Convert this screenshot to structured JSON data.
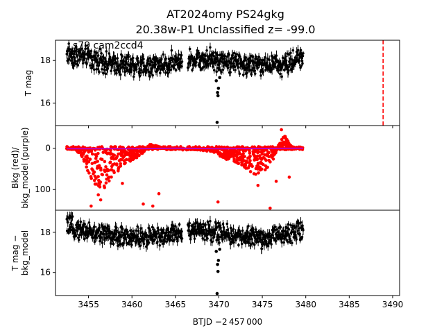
{
  "figure": {
    "title_line1": "AT2024omy  PS24gkg",
    "title_line2": "20.38w-P1 Unclassified z= -99.0",
    "annotation": "s79 cam2ccd4",
    "xlabel": "BTJD −2 457 000"
  },
  "chart_data": [
    {
      "type": "scatter",
      "panel": "top",
      "ylabel": "T mag",
      "y_inverted": true,
      "xlim": [
        3451.2,
        3490.8
      ],
      "ylim": [
        18.95,
        14.95
      ],
      "x_ticks": [
        3455,
        3460,
        3465,
        3470,
        3475,
        3480,
        3485,
        3490
      ],
      "y_ticks": [
        16,
        18
      ],
      "series": [
        {
          "color": "#000000",
          "marker": "point+errorbar",
          "baseline_curve": [
            [
              3452.5,
              18.35
            ],
            [
              3455,
              18.1
            ],
            [
              3458,
              17.85
            ],
            [
              3461,
              17.75
            ],
            [
              3464,
              17.85
            ],
            [
              3467,
              18.1
            ],
            [
              3469,
              18.1
            ],
            [
              3471,
              17.95
            ],
            [
              3474,
              17.8
            ],
            [
              3477,
              17.75
            ],
            [
              3479.7,
              18.15
            ]
          ],
          "scatter_width": 0.6,
          "outliers": [
            [
              3469.8,
              15.1
            ],
            [
              3469.9,
              16.35
            ],
            [
              3469.85,
              16.5
            ],
            [
              3469.95,
              16.7
            ],
            [
              3469.7,
              17.05
            ],
            [
              3470.1,
              17.2
            ]
          ]
        }
      ],
      "vline": {
        "x": 3488.9,
        "color": "#ff0000",
        "style": "dashed"
      }
    },
    {
      "type": "scatter",
      "panel": "middle",
      "ylabel": "Bkg (red)/\nbkg_model (purple)",
      "xlim": [
        3451.2,
        3490.8
      ],
      "ylim": [
        -55,
        150
      ],
      "y_ticks": [
        0,
        100
      ],
      "series": [
        {
          "color": "#ff0000",
          "marker": "point",
          "envelope": [
            [
              3452.5,
              2
            ],
            [
              3453.5,
              3
            ],
            [
              3454.2,
              20
            ],
            [
              3455.0,
              60
            ],
            [
              3455.6,
              95
            ],
            [
              3456.2,
              120
            ],
            [
              3457.0,
              90
            ],
            [
              3458.0,
              70
            ],
            [
              3459.0,
              40
            ],
            [
              3460.0,
              30
            ],
            [
              3461.0,
              20
            ],
            [
              3462.0,
              -10
            ],
            [
              3463.0,
              -5
            ],
            [
              3464.0,
              2
            ],
            [
              3466.0,
              1
            ],
            [
              3468.0,
              5
            ],
            [
              3469.5,
              10
            ],
            [
              3470.5,
              25
            ],
            [
              3471.5,
              30
            ],
            [
              3472.5,
              40
            ],
            [
              3473.5,
              55
            ],
            [
              3474.5,
              70
            ],
            [
              3475.5,
              50
            ],
            [
              3476.5,
              20
            ],
            [
              3477.0,
              -20
            ],
            [
              3477.6,
              -30
            ],
            [
              3478.5,
              0
            ],
            [
              3479.7,
              0
            ]
          ],
          "spikes": [
            [
              3455.3,
              140
            ],
            [
              3456.4,
              125
            ],
            [
              3458.9,
              85
            ],
            [
              3461.3,
              135
            ],
            [
              3462.4,
              140
            ],
            [
              3463.1,
              110
            ],
            [
              3469.9,
              130
            ],
            [
              3474.5,
              90
            ],
            [
              3475.9,
              145
            ],
            [
              3476.6,
              80
            ],
            [
              3478.1,
              70
            ],
            [
              3477.2,
              -45
            ]
          ]
        },
        {
          "color": "#bf00bf",
          "marker": "line",
          "points": [
            [
              3452.5,
              1
            ],
            [
              3460,
              1
            ],
            [
              3465,
              0
            ],
            [
              3470,
              1
            ],
            [
              3479.7,
              0
            ]
          ]
        }
      ]
    },
    {
      "type": "scatter",
      "panel": "bottom",
      "ylabel": "T mag −\nbkg_model",
      "y_inverted": true,
      "xlim": [
        3451.2,
        3490.8
      ],
      "ylim": [
        19.1,
        14.85
      ],
      "x_ticks": [
        3455,
        3460,
        3465,
        3470,
        3475,
        3480,
        3485,
        3490
      ],
      "y_ticks": [
        16,
        18
      ],
      "series": [
        {
          "color": "#000000",
          "marker": "point+errorbar",
          "baseline_curve": [
            [
              3452.5,
              18.3
            ],
            [
              3455,
              18.05
            ],
            [
              3458,
              17.8
            ],
            [
              3461,
              17.72
            ],
            [
              3464,
              17.85
            ],
            [
              3467,
              18.1
            ],
            [
              3469,
              18.05
            ],
            [
              3471,
              17.9
            ],
            [
              3474,
              17.75
            ],
            [
              3477,
              17.75
            ],
            [
              3479.7,
              18.2
            ]
          ],
          "scatter_width": 0.6,
          "outliers": [
            [
              3469.8,
              14.95
            ],
            [
              3469.9,
              16.05
            ],
            [
              3469.85,
              16.4
            ],
            [
              3469.95,
              16.6
            ],
            [
              3469.7,
              17.05
            ],
            [
              3470.1,
              17.15
            ]
          ]
        }
      ]
    }
  ]
}
